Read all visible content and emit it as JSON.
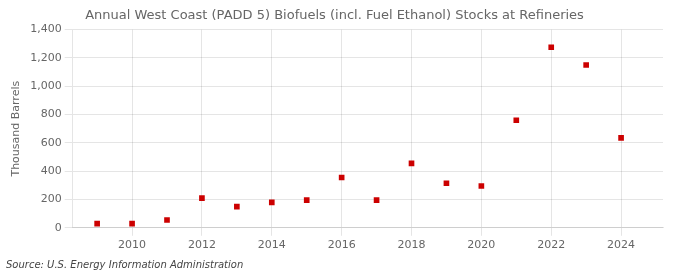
{
  "chart_data": {
    "type": "scatter",
    "title": "Annual West Coast (PADD 5) Biofuels (incl. Fuel Ethanol) Stocks at Refineries",
    "ylabel": "Thousand Barrels",
    "annotation": "Source: U.S. Energy Information Administration",
    "x": [
      2009,
      2010,
      2011,
      2012,
      2013,
      2014,
      2015,
      2016,
      2017,
      2018,
      2019,
      2020,
      2021,
      2022,
      2023,
      2024
    ],
    "values": [
      30,
      30,
      55,
      210,
      150,
      180,
      195,
      355,
      195,
      455,
      315,
      295,
      760,
      1275,
      1150,
      635
    ],
    "color": "#CC0000",
    "marker": "square",
    "xlim": [
      2008.3,
      2025.2
    ],
    "xticks": [
      {
        "value": 2010,
        "label": "2010"
      },
      {
        "value": 2012,
        "label": "2012"
      },
      {
        "value": 2014,
        "label": "2014"
      },
      {
        "value": 2016,
        "label": "2016"
      },
      {
        "value": 2018,
        "label": "2018"
      },
      {
        "value": 2020,
        "label": "2020"
      },
      {
        "value": 2022,
        "label": "2022"
      },
      {
        "value": 2024,
        "label": "2024"
      }
    ],
    "ylim": [
      0,
      1400
    ],
    "yticks": [
      0,
      200,
      400,
      600,
      800,
      {
        "value": 1000,
        "label": "1,000"
      },
      {
        "value": 1200,
        "label": "1,200"
      },
      {
        "value": 1400,
        "label": "1,400"
      }
    ],
    "grid": true
  }
}
